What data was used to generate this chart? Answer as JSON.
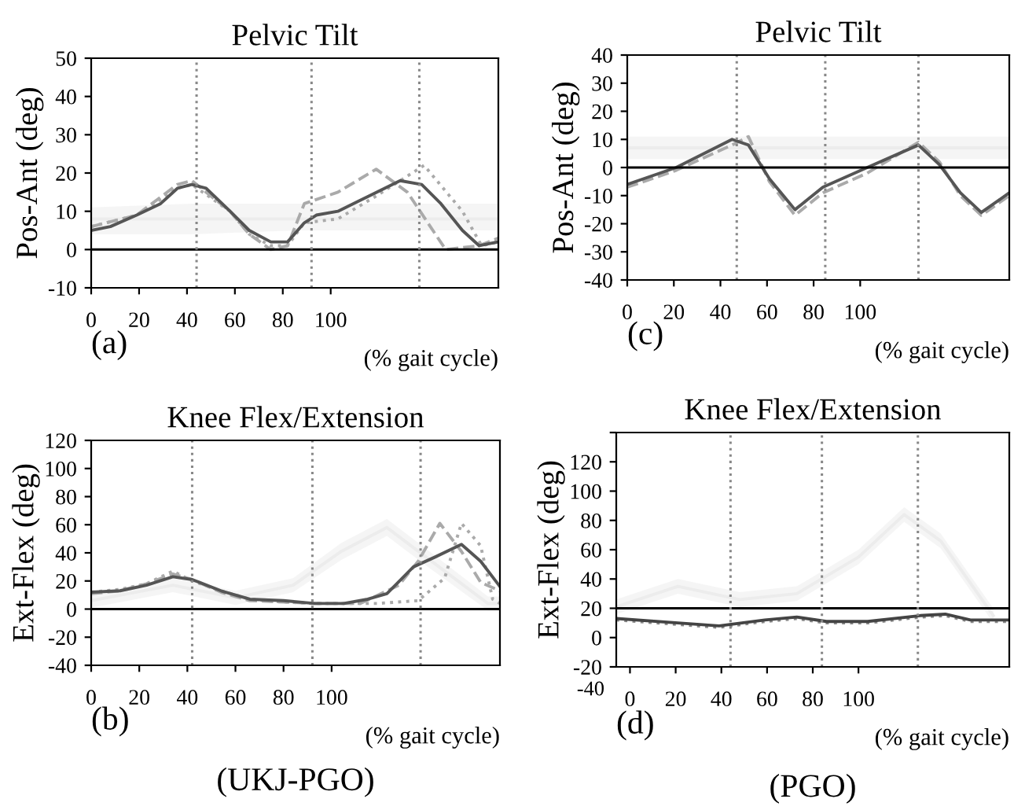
{
  "chart_data": [
    {
      "type": "line",
      "title": "Pelvic Tilt",
      "ylabel": "Pos-Ant (deg)",
      "xlabel": "(% gait cycle)",
      "annotations": [
        "(a)"
      ],
      "xlim": [
        0,
        170
      ],
      "xticks": [
        0,
        20,
        40,
        60,
        80,
        100
      ],
      "ylim": [
        -10,
        50
      ],
      "yticks": [
        -10,
        0,
        10,
        20,
        30,
        40,
        50
      ],
      "ref_lines": [
        {
          "axis": "y",
          "value": 0,
          "color": "#000000",
          "line_style": "solid"
        },
        {
          "axis": "x",
          "value": 44,
          "color": "#888888",
          "line_style": "dotted"
        },
        {
          "axis": "x",
          "value": 92,
          "color": "#888888",
          "line_style": "dotted"
        },
        {
          "axis": "x",
          "value": 137,
          "color": "#888888",
          "line_style": "dotted"
        }
      ],
      "series": [
        {
          "color": "#ececec",
          "x": [
            0,
            42,
            85,
            128,
            170
          ],
          "values": [
            8,
            8,
            8,
            8,
            8
          ],
          "lower": [
            4,
            4,
            5,
            5,
            5
          ],
          "upper": [
            11,
            12,
            12,
            12,
            12
          ]
        },
        {
          "color": "#aaaaaa",
          "line_style": "dashed",
          "x": [
            0,
            19,
            36,
            42,
            58,
            66,
            75,
            82,
            89,
            103,
            119,
            132,
            148,
            162,
            170
          ],
          "values": [
            6,
            9,
            17,
            18,
            10,
            4,
            0,
            1,
            12,
            15,
            21,
            15,
            0,
            1,
            3
          ]
        },
        {
          "color": "#aaaaaa",
          "line_style": "dotted",
          "x": [
            0,
            19,
            36,
            42,
            58,
            66,
            75,
            82,
            89,
            103,
            119,
            139,
            155,
            163,
            170
          ],
          "values": [
            6,
            9,
            16,
            17,
            10,
            4,
            1,
            1,
            7,
            8,
            14,
            22,
            10,
            1,
            2
          ]
        },
        {
          "color": "#555555",
          "line_style": "solid",
          "x": [
            0,
            8,
            19,
            29,
            36,
            42,
            48,
            58,
            66,
            75,
            82,
            89,
            94,
            103,
            116,
            129,
            138,
            146,
            155,
            162,
            170
          ],
          "values": [
            5,
            6,
            9,
            12,
            16,
            17,
            16,
            10,
            5,
            2,
            2,
            7,
            9,
            10,
            14,
            18,
            17,
            12,
            5,
            1,
            2
          ]
        }
      ]
    },
    {
      "type": "line",
      "title": "Pelvic Tilt",
      "ylabel": "Pos-Ant (deg)",
      "xlabel": "(% gait cycle)",
      "annotations": [
        "(c)"
      ],
      "xlim": [
        0,
        164
      ],
      "xticks": [
        0,
        20,
        40,
        60,
        80,
        100
      ],
      "ylim": [
        -40,
        40
      ],
      "yticks": [
        -40,
        -30,
        -20,
        -10,
        0,
        10,
        20,
        30,
        40
      ],
      "ref_lines": [
        {
          "axis": "y",
          "value": 0,
          "color": "#000000",
          "line_style": "solid"
        },
        {
          "axis": "x",
          "value": 47,
          "color": "#888888",
          "line_style": "dotted"
        },
        {
          "axis": "x",
          "value": 85,
          "color": "#888888",
          "line_style": "dotted"
        },
        {
          "axis": "x",
          "value": 125,
          "color": "#888888",
          "line_style": "dotted"
        }
      ],
      "series": [
        {
          "color": "#ececec",
          "x": [
            0,
            41,
            82,
            123,
            164
          ],
          "values": [
            7,
            7,
            7,
            7,
            7
          ],
          "lower": [
            3,
            3,
            3,
            3,
            3
          ],
          "upper": [
            11,
            11,
            11,
            11,
            11
          ]
        },
        {
          "color": "#aaaaaa",
          "line_style": "dashed",
          "x": [
            0,
            21,
            45,
            52,
            61,
            72,
            84,
            103,
            125,
            134,
            143,
            152,
            164
          ],
          "values": [
            -7,
            -1,
            8,
            11,
            -5,
            -17,
            -9,
            -2,
            9,
            2,
            -10,
            -17,
            -10
          ]
        },
        {
          "color": "#555555",
          "line_style": "solid",
          "x": [
            0,
            21,
            45,
            52,
            61,
            72,
            84,
            103,
            125,
            134,
            143,
            152,
            164
          ],
          "values": [
            -6,
            0,
            10,
            8,
            -4,
            -15,
            -7,
            0,
            8,
            1,
            -9,
            -16,
            -9
          ]
        }
      ]
    },
    {
      "type": "line",
      "title": "Knee Flex/Extension",
      "ylabel": "Ext-Flex (deg)",
      "xlabel": "(% gait cycle)",
      "annotations": [
        "(b)",
        "(UKJ-PGO)"
      ],
      "xlim": [
        0,
        170
      ],
      "xticks": [
        0,
        20,
        40,
        60,
        80,
        100
      ],
      "ylim": [
        -40,
        120
      ],
      "yticks": [
        -40,
        -20,
        0,
        20,
        40,
        60,
        80,
        100,
        120
      ],
      "ref_lines": [
        {
          "axis": "y",
          "value": 0,
          "color": "#000000",
          "line_style": "solid"
        },
        {
          "axis": "x",
          "value": 42,
          "color": "#888888",
          "line_style": "dotted"
        },
        {
          "axis": "x",
          "value": 92,
          "color": "#888888",
          "line_style": "dotted"
        },
        {
          "axis": "x",
          "value": 137,
          "color": "#888888",
          "line_style": "dotted"
        }
      ],
      "series": [
        {
          "color": "#ececec",
          "x": [
            0,
            34,
            60,
            84,
            104,
            123,
            140,
            165,
            170
          ],
          "values": [
            6,
            17,
            8,
            17,
            41,
            58,
            36,
            4,
            4
          ],
          "lower": [
            1,
            12,
            3,
            12,
            35,
            52,
            30,
            -1,
            -1
          ],
          "upper": [
            11,
            22,
            13,
            22,
            47,
            64,
            42,
            9,
            9
          ]
        },
        {
          "color": "#aaaaaa",
          "line_style": "dashed",
          "x": [
            0,
            12,
            23,
            34,
            42,
            54,
            66,
            80,
            93,
            105,
            112,
            128,
            136,
            145,
            154,
            162,
            170
          ],
          "values": [
            11,
            13,
            18,
            25,
            21,
            12,
            6,
            5,
            4,
            4,
            4,
            17,
            34,
            61,
            41,
            19,
            13
          ]
        },
        {
          "color": "#aaaaaa",
          "line_style": "dotted",
          "x": [
            0,
            12,
            23,
            34,
            42,
            54,
            66,
            80,
            93,
            105,
            119,
            136,
            147,
            154,
            162,
            167,
            170
          ],
          "values": [
            12,
            14,
            18,
            27,
            20,
            13,
            7,
            5,
            4,
            4,
            4,
            6,
            22,
            61,
            45,
            7,
            4
          ]
        },
        {
          "color": "#555555",
          "line_style": "solid",
          "x": [
            0,
            12,
            23,
            34,
            42,
            54,
            66,
            80,
            93,
            105,
            115,
            123,
            134,
            143,
            154,
            162,
            170
          ],
          "values": [
            12,
            13,
            17,
            23,
            21,
            13,
            7,
            6,
            4,
            4,
            7,
            11,
            30,
            37,
            46,
            34,
            16
          ]
        }
      ]
    },
    {
      "type": "line",
      "title": "Knee Flex/Extension",
      "ylabel": "Ext-Flex (deg)",
      "xlabel": "(% gait cycle)",
      "annotations": [
        "(d)",
        "(PGO)",
        "-40"
      ],
      "xlim": [
        -6,
        166
      ],
      "xticks": [
        0,
        20,
        40,
        60,
        80,
        100
      ],
      "ylim": [
        -20,
        140
      ],
      "yticks": [
        -20,
        0,
        20,
        40,
        60,
        80,
        100,
        120,
        {
          "value": 140,
          "label": null
        }
      ],
      "ref_lines": [
        {
          "axis": "y",
          "value": 20,
          "color": "#000000",
          "line_style": "solid"
        },
        {
          "axis": "x",
          "value": 44,
          "color": "#888888",
          "line_style": "dotted"
        },
        {
          "axis": "x",
          "value": 84,
          "color": "#888888",
          "line_style": "dotted"
        },
        {
          "axis": "x",
          "value": 126,
          "color": "#888888",
          "line_style": "dotted"
        }
      ],
      "series": [
        {
          "color": "#ececec",
          "x": [
            -6,
            21,
            48,
            73,
            100,
            120,
            136,
            159
          ],
          "values": [
            21,
            35,
            26,
            30,
            55,
            84,
            66,
            15
          ],
          "lower": [
            16,
            30,
            21,
            25,
            50,
            79,
            61,
            10
          ],
          "upper": [
            26,
            40,
            31,
            35,
            60,
            89,
            71,
            20
          ]
        },
        {
          "color": "#888888",
          "line_style": "dotted",
          "x": [
            -6,
            21,
            39,
            59,
            73,
            86,
            104,
            127,
            138,
            149,
            166
          ],
          "values": [
            12,
            9,
            7,
            11,
            13,
            10,
            10,
            14,
            15,
            11,
            11
          ]
        },
        {
          "color": "#444444",
          "line_style": "solid",
          "x": [
            -6,
            21,
            39,
            59,
            73,
            86,
            104,
            127,
            138,
            149,
            166
          ],
          "values": [
            13,
            10,
            8,
            12,
            14,
            11,
            11,
            15,
            16,
            12,
            12
          ]
        }
      ]
    }
  ]
}
